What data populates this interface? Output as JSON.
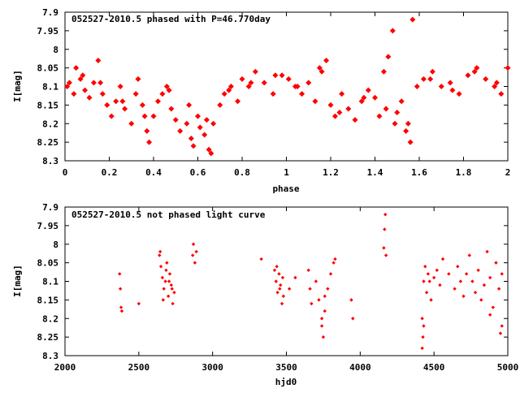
{
  "chart_data": [
    {
      "type": "scatter",
      "title": "052527-2010.5 phased with P=46.770day",
      "xlabel": "phase",
      "ylabel": "I[mag]",
      "xlim": [
        0,
        2
      ],
      "ylim": [
        8.3,
        7.9
      ],
      "y_inverted": true,
      "x_ticks": [
        "0",
        "0.2",
        "0.4",
        "0.6",
        "0.8",
        "1",
        "1.2",
        "1.4",
        "1.6",
        "1.8",
        "2"
      ],
      "y_ticks": [
        "7.9",
        "7.95",
        "8",
        "8.05",
        "8.1",
        "8.15",
        "8.2",
        "8.25",
        "8.3"
      ],
      "marker": "filled-diamond",
      "series": [
        {
          "color": "#ff0000",
          "x": [
            0.01,
            0.04,
            0.05,
            0.07,
            0.09,
            0.11,
            0.13,
            0.15,
            0.17,
            0.19,
            0.21,
            0.23,
            0.25,
            0.27,
            0.3,
            0.32,
            0.33,
            0.35,
            0.37,
            0.38,
            0.4,
            0.42,
            0.44,
            0.46,
            0.48,
            0.5,
            0.52,
            0.55,
            0.57,
            0.58,
            0.6,
            0.61,
            0.63,
            0.65,
            0.66,
            0.67,
            0.7,
            0.72,
            0.75,
            0.78,
            0.8,
            0.83,
            0.86,
            0.9,
            0.94,
            0.98,
            1.01,
            1.04,
            1.07,
            1.1,
            1.13,
            1.16,
            1.18,
            1.2,
            1.22,
            1.25,
            1.28,
            1.31,
            1.34,
            1.37,
            1.4,
            1.42,
            1.44,
            1.46,
            1.48,
            1.49,
            1.5,
            1.52,
            1.54,
            1.56,
            1.57,
            1.59,
            1.62,
            1.66,
            1.7,
            1.74,
            1.78,
            1.82,
            1.86,
            1.9,
            1.94,
            1.97,
            2.0,
            0.02,
            0.08,
            0.16,
            0.26,
            0.36,
            0.47,
            0.56,
            0.64,
            0.74,
            0.84,
            0.95,
            1.05,
            1.15,
            1.24,
            1.35,
            1.45,
            1.55,
            1.65,
            1.75,
            1.85,
            1.95
          ],
          "y": [
            8.1,
            8.12,
            8.05,
            8.08,
            8.11,
            8.13,
            8.09,
            8.03,
            8.12,
            8.15,
            8.18,
            8.14,
            8.1,
            8.16,
            8.2,
            8.12,
            8.08,
            8.15,
            8.22,
            8.25,
            8.18,
            8.14,
            8.12,
            8.1,
            8.16,
            8.19,
            8.22,
            8.2,
            8.24,
            8.26,
            8.18,
            8.21,
            8.23,
            8.27,
            8.28,
            8.2,
            8.15,
            8.12,
            8.1,
            8.14,
            8.08,
            8.1,
            8.06,
            8.09,
            8.12,
            8.07,
            8.08,
            8.1,
            8.12,
            8.09,
            8.14,
            8.06,
            8.03,
            8.15,
            8.18,
            8.12,
            8.16,
            8.19,
            8.14,
            8.11,
            8.13,
            8.18,
            8.06,
            8.02,
            7.95,
            8.2,
            8.17,
            8.14,
            8.22,
            8.25,
            7.92,
            8.1,
            8.08,
            8.06,
            8.1,
            8.09,
            8.12,
            8.07,
            8.05,
            8.08,
            8.1,
            8.12,
            8.05,
            8.09,
            8.07,
            8.09,
            8.14,
            8.18,
            8.11,
            8.15,
            8.19,
            8.11,
            8.09,
            8.07,
            8.1,
            8.05,
            8.17,
            8.13,
            8.16,
            8.2,
            8.08,
            8.11,
            8.06,
            8.09
          ]
        }
      ]
    },
    {
      "type": "scatter",
      "title": "052527-2010.5 not phased light curve",
      "xlabel": "hjd0",
      "ylabel": "I[mag]",
      "xlim": [
        2000,
        5000
      ],
      "ylim": [
        8.3,
        7.9
      ],
      "y_inverted": true,
      "x_ticks": [
        "2000",
        "2500",
        "3000",
        "3500",
        "4000",
        "4500",
        "5000"
      ],
      "y_ticks": [
        "7.9",
        "7.95",
        "8",
        "8.05",
        "8.1",
        "8.15",
        "8.2",
        "8.25",
        "8.3"
      ],
      "marker": "small-diamond",
      "series": [
        {
          "color": "#ff0000",
          "x": [
            2370,
            2375,
            2380,
            2385,
            2500,
            2640,
            2650,
            2660,
            2670,
            2680,
            2690,
            2700,
            2710,
            2720,
            2730,
            2740,
            2645,
            2665,
            2685,
            2705,
            2725,
            2865,
            2870,
            2880,
            2890,
            3330,
            3420,
            3430,
            3440,
            3450,
            3460,
            3470,
            3480,
            3435,
            3455,
            3475,
            3520,
            3560,
            3650,
            3660,
            3670,
            3700,
            3720,
            3740,
            3760,
            3780,
            3800,
            3820,
            3740,
            3750,
            3760,
            3830,
            3940,
            3950,
            4160,
            4165,
            4170,
            4175,
            4420,
            4430,
            4440,
            4450,
            4460,
            4470,
            4480,
            4500,
            4520,
            4540,
            4560,
            4600,
            4640,
            4660,
            4680,
            4700,
            4720,
            4740,
            4760,
            4780,
            4800,
            4820,
            4840,
            4860,
            4880,
            4900,
            4920,
            4940,
            4960,
            4960,
            4950,
            4880,
            4420,
            4425,
            4430
          ],
          "y": [
            8.08,
            8.12,
            8.17,
            8.18,
            8.16,
            8.03,
            8.06,
            8.09,
            8.12,
            8.1,
            8.05,
            8.14,
            8.08,
            8.11,
            8.16,
            8.13,
            8.02,
            8.15,
            8.07,
            8.1,
            8.12,
            8.03,
            8.0,
            8.05,
            8.02,
            8.04,
            8.07,
            8.1,
            8.13,
            8.08,
            8.11,
            8.16,
            8.14,
            8.06,
            8.12,
            8.09,
            8.12,
            8.09,
            8.07,
            8.12,
            8.16,
            8.1,
            8.15,
            8.2,
            8.18,
            8.12,
            8.08,
            8.05,
            8.22,
            8.25,
            8.14,
            8.04,
            8.15,
            8.2,
            8.01,
            7.96,
            7.92,
            8.03,
            8.2,
            8.1,
            8.06,
            8.13,
            8.08,
            8.1,
            8.15,
            8.09,
            8.07,
            8.11,
            8.04,
            8.08,
            8.12,
            8.06,
            8.1,
            8.14,
            8.08,
            8.03,
            8.1,
            8.13,
            8.07,
            8.15,
            8.11,
            8.02,
            8.09,
            8.17,
            8.05,
            8.12,
            8.08,
            8.22,
            8.24,
            8.19,
            8.28,
            8.25,
            8.22
          ]
        }
      ]
    }
  ]
}
